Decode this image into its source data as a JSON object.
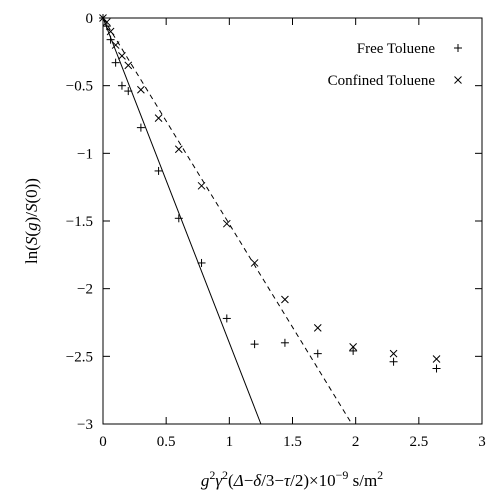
{
  "chart_data": {
    "type": "scatter",
    "xlabel": {
      "parts": [
        {
          "text": "g",
          "italic": true
        },
        {
          "text": "2",
          "sup": true
        },
        {
          "text": "γ",
          "italic": true
        },
        {
          "text": "2",
          "sup": true
        },
        {
          "text": "(",
          "italic": false
        },
        {
          "text": "Δ",
          "italic": true
        },
        {
          "text": "−",
          "italic": false
        },
        {
          "text": "δ",
          "italic": true
        },
        {
          "text": "/3−",
          "italic": false
        },
        {
          "text": "τ",
          "italic": true
        },
        {
          "text": "/2)×10",
          "italic": false
        },
        {
          "text": "−9",
          "sup": true
        },
        {
          "text": " s/m",
          "italic": false
        },
        {
          "text": "2",
          "sup": true
        }
      ]
    },
    "ylabel": {
      "parts": [
        {
          "text": "ln(",
          "italic": false
        },
        {
          "text": "S",
          "italic": true
        },
        {
          "text": "(",
          "italic": false
        },
        {
          "text": "g",
          "italic": true
        },
        {
          "text": ")/",
          "italic": false
        },
        {
          "text": "S",
          "italic": true
        },
        {
          "text": "(0))",
          "italic": false
        }
      ]
    },
    "xlim": [
      0,
      3
    ],
    "ylim": [
      -3,
      0
    ],
    "xticks": [
      0,
      0.5,
      1,
      1.5,
      2,
      2.5,
      3
    ],
    "xtick_labels": [
      "0",
      "0.5",
      "1",
      "1.5",
      "2",
      "2.5",
      "3"
    ],
    "yticks": [
      0,
      -0.5,
      -1,
      -1.5,
      -2,
      -2.5,
      -3
    ],
    "ytick_labels": [
      "0",
      "−0.5",
      "−1",
      "−1.5",
      "−2",
      "−2.5",
      "−3"
    ],
    "grid": false,
    "legend_position": "top-right",
    "series": [
      {
        "name": "Free Toluene",
        "marker": "plus",
        "color": "#000000",
        "x": [
          0.0,
          0.03,
          0.06,
          0.1,
          0.15,
          0.2,
          0.3,
          0.44,
          0.6,
          0.78,
          0.98,
          1.2,
          1.44,
          1.7,
          1.98,
          2.3,
          2.64
        ],
        "y": [
          0.0,
          -0.06,
          -0.16,
          -0.33,
          -0.5,
          -0.54,
          -0.81,
          -1.13,
          -1.48,
          -1.81,
          -2.22,
          -2.41,
          -2.4,
          -2.48,
          -2.46,
          -2.54,
          -2.59
        ]
      },
      {
        "name": "Confined Toluene",
        "marker": "cross",
        "color": "#000000",
        "x": [
          0.0,
          0.03,
          0.06,
          0.1,
          0.15,
          0.2,
          0.3,
          0.44,
          0.6,
          0.78,
          0.98,
          1.2,
          1.44,
          1.7,
          1.98,
          2.3,
          2.64
        ],
        "y": [
          0.0,
          -0.03,
          -0.1,
          -0.2,
          -0.28,
          -0.35,
          -0.53,
          -0.74,
          -0.97,
          -1.24,
          -1.52,
          -1.81,
          -2.08,
          -2.29,
          -2.43,
          -2.48,
          -2.52
        ]
      }
    ],
    "fit_lines": [
      {
        "style": "solid",
        "color": "#000000",
        "x": [
          0,
          1.25
        ],
        "y": [
          0,
          -3
        ]
      },
      {
        "style": "dashed",
        "color": "#000000",
        "x": [
          0,
          1.97
        ],
        "y": [
          0,
          -3
        ]
      }
    ]
  }
}
